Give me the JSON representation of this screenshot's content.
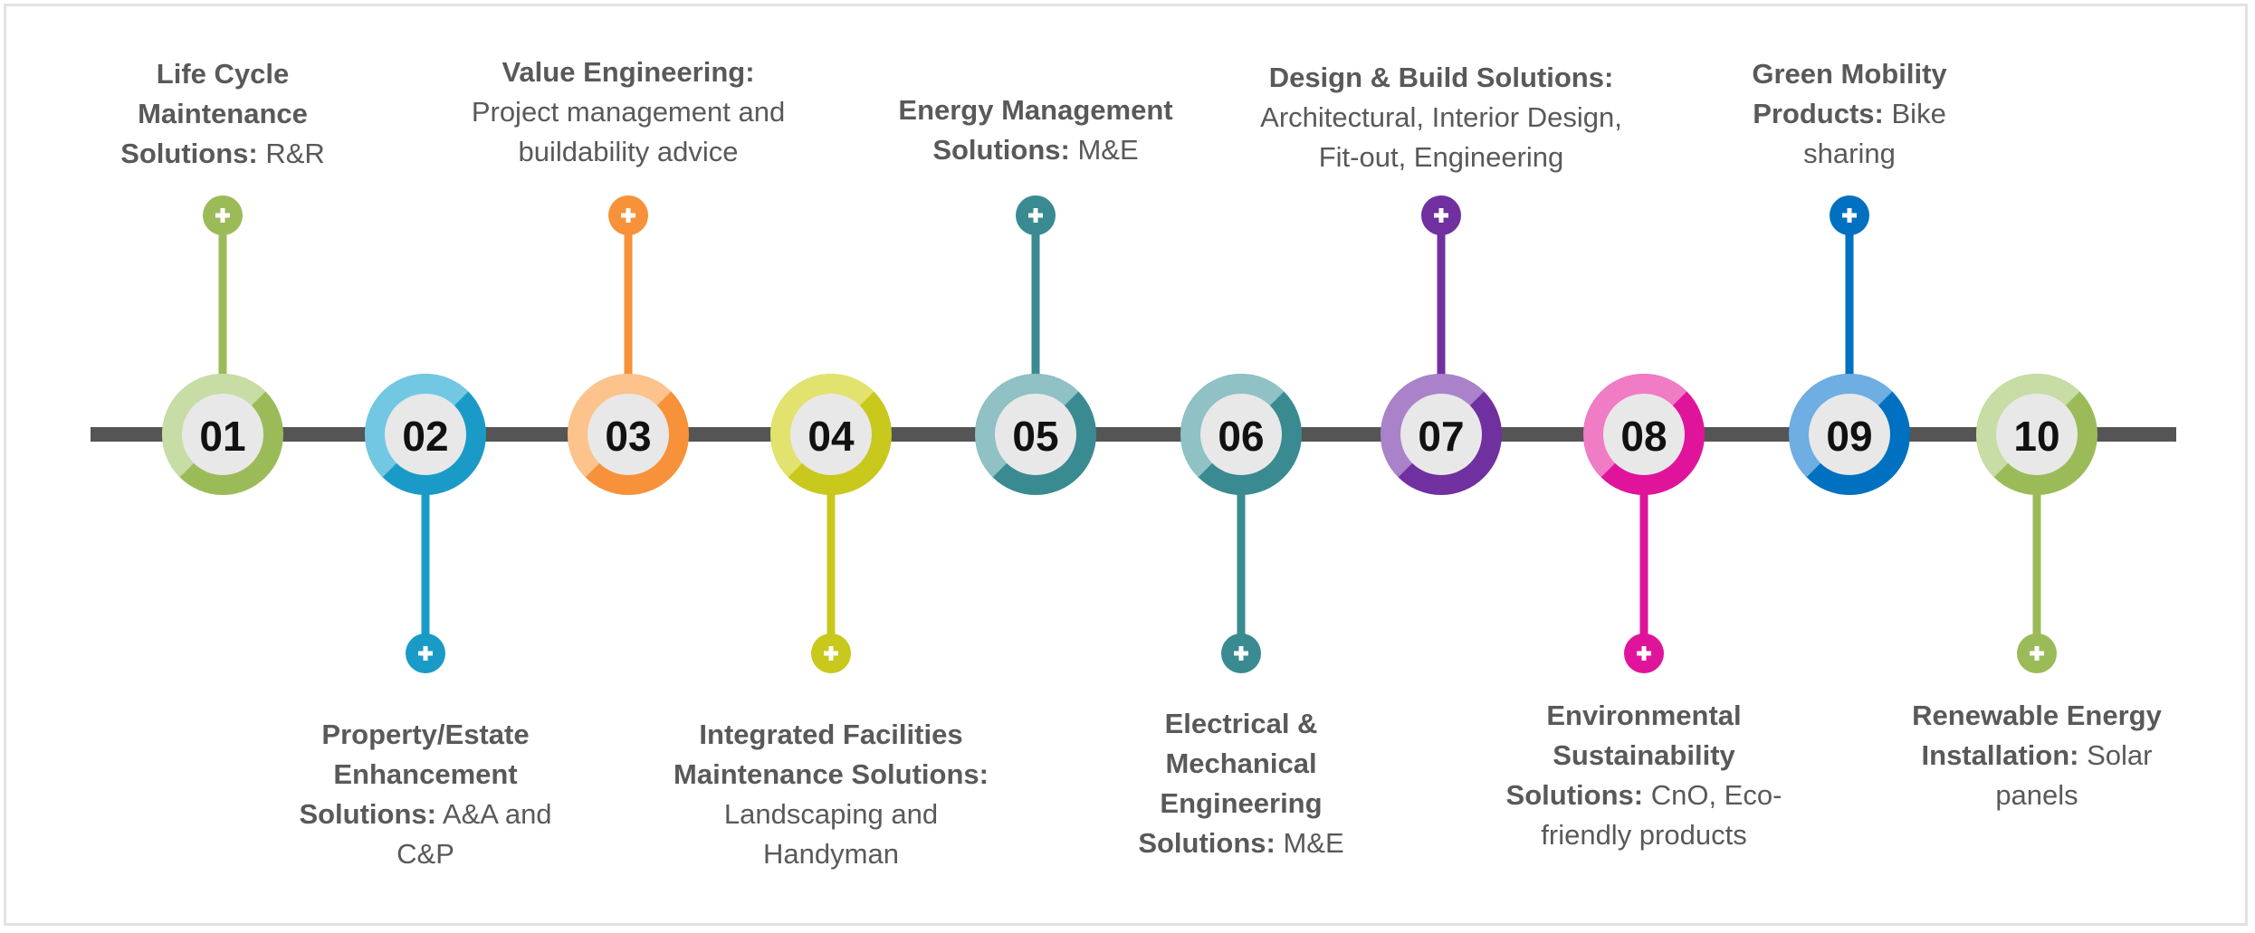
{
  "items": [
    {
      "number": "01",
      "title": "Life Cycle Maintenance Solutions:",
      "text": "R&R"
    },
    {
      "number": "02",
      "title": "Property/Estate Enhancement Solutions:",
      "text": "A&A and C&P"
    },
    {
      "number": "03",
      "title": "Value Engineering:",
      "text": "Project management and buildability advice"
    },
    {
      "number": "04",
      "title": "Integrated Facilities Maintenance Solutions:",
      "text": "Landscaping and Handyman"
    },
    {
      "number": "05",
      "title": "Energy Management Solutions:",
      "text": "M&E"
    },
    {
      "number": "06",
      "title": "Electrical & Mechanical Engineering Solutions:",
      "text": "M&E"
    },
    {
      "number": "07",
      "title": "Design & Build Solutions:",
      "text": "Architectural, Interior Design, Fit-out, Engineering"
    },
    {
      "number": "08",
      "title": "Environmental Sustainability Solutions:",
      "text": "CnO, Eco-friendly products"
    },
    {
      "number": "09",
      "title": "Green Mobility Products:",
      "text": "Bike sharing"
    },
    {
      "number": "10",
      "title": "Renewable Energy Installation:",
      "text": "Solar panels"
    }
  ]
}
